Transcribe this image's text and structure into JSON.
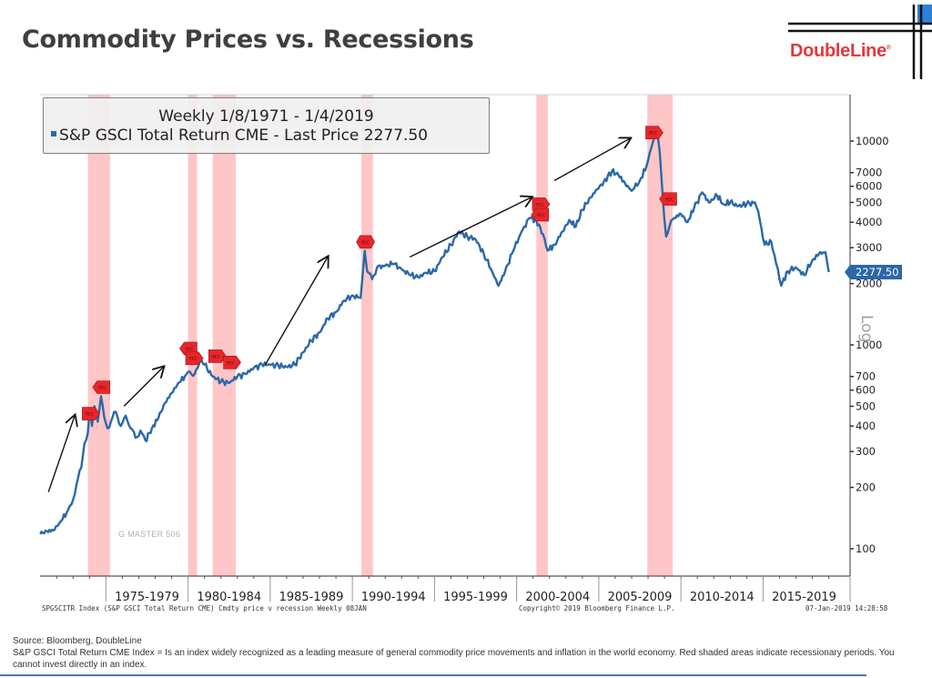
{
  "page": {
    "title": "Commodity Prices vs. Recessions",
    "brand": "DoubleLine",
    "brand_mark": "®",
    "brand_color": "#e03a3e",
    "accent_color": "#2b68a8"
  },
  "legend": {
    "line1": "Weekly 1/8/1971 - 1/4/2019",
    "line2": "S&P GSCI Total Return CME - Last Price 2277.50"
  },
  "last_price_tag": "2277.50",
  "axis_scale_label": "Log",
  "watermark": "G MASTER 506",
  "footer": {
    "left": "SPGSCITR Index (S&P GSCI Total Return CME) Cmdty price v recession  Weekly 08JAN",
    "middle": "Copyright© 2019 Bloomberg Finance L.P.",
    "right": "07-Jan-2019 14:28:58"
  },
  "source": {
    "line1": "Source: Bloomberg, DoubleLine",
    "line2": "S&P GSCI Total Return CME Index =  Is an index widely recognized as a leading measure of general commodity price movements and inflation in the world economy. Red shaded areas indicate recessionary periods. You cannot invest directly in an index."
  },
  "chart_data": {
    "type": "line",
    "title": "Weekly 1/8/1971 - 1/4/2019",
    "xlabel": "",
    "ylabel": "",
    "y_scale": "log",
    "ylim": [
      72,
      16000
    ],
    "xlim": [
      1971.0,
      2019.1
    ],
    "grid": false,
    "legend_position": "top-left",
    "y_ticks": [
      100,
      200,
      300,
      400,
      500,
      600,
      700,
      1000,
      2000,
      3000,
      4000,
      5000,
      6000,
      7000,
      10000
    ],
    "y_tick_labels": [
      "100",
      "200",
      "300",
      "400",
      "500",
      "600",
      "700",
      "1000",
      "2000",
      "3000",
      "4000",
      "5000",
      "6000",
      "7000",
      "10000"
    ],
    "x_period_labels": [
      {
        "label": "1975-1979",
        "start": 1975,
        "end": 1980
      },
      {
        "label": "1980-1984",
        "start": 1980,
        "end": 1985
      },
      {
        "label": "1985-1989",
        "start": 1985,
        "end": 1990
      },
      {
        "label": "1990-1994",
        "start": 1990,
        "end": 1995
      },
      {
        "label": "1995-1999",
        "start": 1995,
        "end": 2000
      },
      {
        "label": "2000-2004",
        "start": 2000,
        "end": 2005
      },
      {
        "label": "2005-2009",
        "start": 2005,
        "end": 2010
      },
      {
        "label": "2010-2014",
        "start": 2010,
        "end": 2015
      },
      {
        "label": "2015-2019",
        "start": 2015,
        "end": 2020
      }
    ],
    "series": [
      {
        "name": "S&P GSCI Total Return CME - Last Price",
        "color": "#2b68a8",
        "last_value": 2277.5,
        "points": [
          [
            1971.0,
            118
          ],
          [
            1971.4,
            122
          ],
          [
            1971.8,
            123
          ],
          [
            1972.2,
            135
          ],
          [
            1972.6,
            150
          ],
          [
            1972.9,
            165
          ],
          [
            1973.2,
            205
          ],
          [
            1973.5,
            250
          ],
          [
            1973.7,
            330
          ],
          [
            1973.9,
            370
          ],
          [
            1974.0,
            480
          ],
          [
            1974.15,
            400
          ],
          [
            1974.3,
            500
          ],
          [
            1974.5,
            420
          ],
          [
            1974.7,
            560
          ],
          [
            1974.9,
            440
          ],
          [
            1975.1,
            390
          ],
          [
            1975.3,
            420
          ],
          [
            1975.6,
            470
          ],
          [
            1975.9,
            400
          ],
          [
            1976.2,
            450
          ],
          [
            1976.5,
            390
          ],
          [
            1976.8,
            350
          ],
          [
            1977.1,
            380
          ],
          [
            1977.4,
            340
          ],
          [
            1977.8,
            390
          ],
          [
            1978.2,
            440
          ],
          [
            1978.6,
            520
          ],
          [
            1979.0,
            580
          ],
          [
            1979.4,
            650
          ],
          [
            1979.8,
            700
          ],
          [
            1980.1,
            740
          ],
          [
            1980.4,
            720
          ],
          [
            1980.8,
            850
          ],
          [
            1981.0,
            800
          ],
          [
            1981.5,
            700
          ],
          [
            1982.0,
            660
          ],
          [
            1982.5,
            650
          ],
          [
            1983.0,
            700
          ],
          [
            1983.5,
            720
          ],
          [
            1984.0,
            770
          ],
          [
            1984.5,
            800
          ],
          [
            1985.0,
            800
          ],
          [
            1985.5,
            790
          ],
          [
            1986.0,
            780
          ],
          [
            1986.5,
            800
          ],
          [
            1987.0,
            920
          ],
          [
            1987.5,
            1050
          ],
          [
            1988.0,
            1150
          ],
          [
            1988.5,
            1350
          ],
          [
            1989.0,
            1450
          ],
          [
            1989.5,
            1650
          ],
          [
            1990.0,
            1750
          ],
          [
            1990.5,
            1700
          ],
          [
            1990.75,
            2900
          ],
          [
            1990.9,
            2300
          ],
          [
            1991.2,
            2100
          ],
          [
            1991.5,
            2400
          ],
          [
            1992.0,
            2450
          ],
          [
            1992.5,
            2500
          ],
          [
            1993.0,
            2350
          ],
          [
            1993.5,
            2200
          ],
          [
            1994.0,
            2150
          ],
          [
            1994.5,
            2250
          ],
          [
            1995.0,
            2300
          ],
          [
            1995.5,
            2700
          ],
          [
            1996.0,
            3100
          ],
          [
            1996.5,
            3600
          ],
          [
            1997.0,
            3400
          ],
          [
            1997.5,
            3300
          ],
          [
            1998.0,
            2800
          ],
          [
            1998.5,
            2300
          ],
          [
            1998.9,
            1950
          ],
          [
            1999.3,
            2300
          ],
          [
            1999.8,
            2900
          ],
          [
            2000.3,
            3600
          ],
          [
            2000.8,
            4200
          ],
          [
            2001.2,
            4100
          ],
          [
            2001.6,
            3500
          ],
          [
            2001.9,
            2900
          ],
          [
            2002.3,
            3100
          ],
          [
            2002.8,
            3600
          ],
          [
            2003.2,
            4100
          ],
          [
            2003.6,
            3800
          ],
          [
            2004.0,
            4600
          ],
          [
            2004.5,
            5300
          ],
          [
            2004.9,
            5800
          ],
          [
            2005.3,
            6300
          ],
          [
            2005.8,
            7100
          ],
          [
            2006.2,
            6800
          ],
          [
            2006.6,
            6200
          ],
          [
            2007.0,
            5700
          ],
          [
            2007.5,
            6400
          ],
          [
            2007.9,
            7500
          ],
          [
            2008.2,
            9300
          ],
          [
            2008.5,
            11500
          ],
          [
            2008.7,
            9000
          ],
          [
            2008.9,
            5200
          ],
          [
            2009.1,
            3400
          ],
          [
            2009.3,
            3800
          ],
          [
            2009.6,
            4200
          ],
          [
            2010.0,
            4400
          ],
          [
            2010.4,
            4000
          ],
          [
            2010.8,
            4700
          ],
          [
            2011.3,
            5600
          ],
          [
            2011.7,
            5000
          ],
          [
            2012.2,
            5400
          ],
          [
            2012.6,
            4900
          ],
          [
            2013.0,
            5000
          ],
          [
            2013.5,
            4800
          ],
          [
            2014.0,
            4900
          ],
          [
            2014.5,
            5000
          ],
          [
            2014.8,
            4100
          ],
          [
            2015.1,
            3100
          ],
          [
            2015.5,
            3200
          ],
          [
            2015.8,
            2500
          ],
          [
            2016.1,
            1950
          ],
          [
            2016.5,
            2300
          ],
          [
            2017.0,
            2400
          ],
          [
            2017.5,
            2200
          ],
          [
            2018.0,
            2600
          ],
          [
            2018.4,
            2800
          ],
          [
            2018.8,
            2850
          ],
          [
            2019.0,
            2277.5
          ]
        ]
      }
    ],
    "recessions": [
      {
        "start": 1973.9,
        "end": 1975.25
      },
      {
        "start": 1980.0,
        "end": 1980.55
      },
      {
        "start": 1981.5,
        "end": 1982.9
      },
      {
        "start": 1990.55,
        "end": 1991.25
      },
      {
        "start": 2001.2,
        "end": 2001.9
      },
      {
        "start": 2007.95,
        "end": 2009.5
      }
    ],
    "recession_markers": [
      {
        "label": "REC",
        "x": 1974.0,
        "y": 460,
        "dir": "right"
      },
      {
        "label": "REC",
        "x": 1974.8,
        "y": 620,
        "dir": "left"
      },
      {
        "label": "REC",
        "x": 1980.1,
        "y": 960,
        "dir": "left"
      },
      {
        "label": "REC",
        "x": 1980.3,
        "y": 860,
        "dir": "right"
      },
      {
        "label": "REC",
        "x": 1981.7,
        "y": 880,
        "dir": "right"
      },
      {
        "label": "REC",
        "x": 1982.6,
        "y": 820,
        "dir": "right"
      },
      {
        "label": "REC",
        "x": 1990.8,
        "y": 3200,
        "dir": "both"
      },
      {
        "label": "REC",
        "x": 2001.4,
        "y": 4900,
        "dir": "right"
      },
      {
        "label": "REC",
        "x": 2001.5,
        "y": 4350,
        "dir": "left"
      },
      {
        "label": "REC",
        "x": 2008.3,
        "y": 11000,
        "dir": "right"
      },
      {
        "label": "REC",
        "x": 2009.3,
        "y": 5200,
        "dir": "left"
      }
    ],
    "annotation_arrows": [
      {
        "from": [
          1971.5,
          190
        ],
        "to": [
          1973.1,
          450
        ]
      },
      {
        "from": [
          1976.1,
          500
        ],
        "to": [
          1978.5,
          780
        ]
      },
      {
        "from": [
          1984.7,
          800
        ],
        "to": [
          1988.5,
          2700
        ]
      },
      {
        "from": [
          1993.5,
          2700
        ],
        "to": [
          2000.9,
          5300
        ]
      },
      {
        "from": [
          2002.3,
          6400
        ],
        "to": [
          2006.9,
          10300
        ]
      }
    ]
  }
}
